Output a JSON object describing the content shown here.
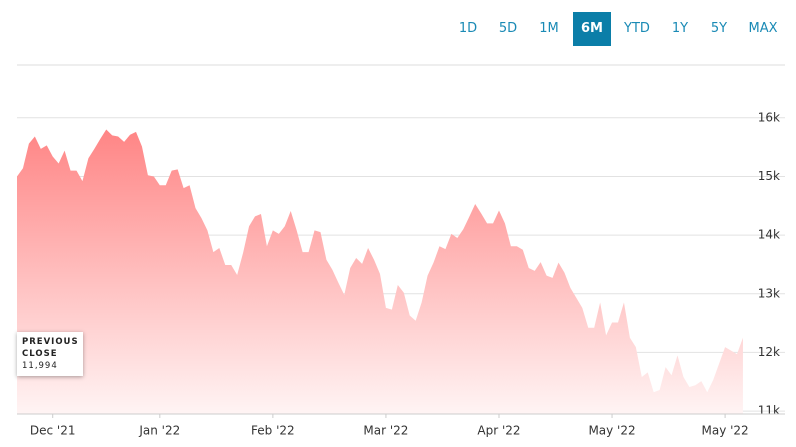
{
  "controls": {
    "ranges": [
      "1D",
      "5D",
      "1M",
      "6M",
      "YTD",
      "1Y",
      "5Y",
      "MAX"
    ],
    "selected": 3
  },
  "chart_data": {
    "type": "area",
    "values": [
      15000,
      15140,
      15560,
      15680,
      15470,
      15530,
      15340,
      15220,
      15440,
      15100,
      15100,
      14920,
      15310,
      15470,
      15640,
      15800,
      15700,
      15680,
      15590,
      15710,
      15760,
      15510,
      15020,
      15000,
      14850,
      14850,
      15100,
      15120,
      14800,
      14850,
      14460,
      14290,
      14080,
      13710,
      13780,
      13490,
      13490,
      13320,
      13700,
      14150,
      14320,
      14360,
      13810,
      14080,
      14020,
      14150,
      14410,
      14080,
      13710,
      13710,
      14080,
      14050,
      13580,
      13410,
      13190,
      12980,
      13440,
      13610,
      13510,
      13780,
      13580,
      13340,
      12760,
      12730,
      13150,
      13020,
      12630,
      12540,
      12850,
      13310,
      13530,
      13810,
      13760,
      14020,
      13950,
      14100,
      14310,
      14530,
      14370,
      14200,
      14200,
      14420,
      14200,
      13810,
      13810,
      13750,
      13440,
      13390,
      13540,
      13310,
      13270,
      13530,
      13360,
      13100,
      12930,
      12760,
      12420,
      12420,
      12850,
      12290,
      12510,
      12510,
      12850,
      12250,
      12090,
      11580,
      11660,
      11320,
      11360,
      11750,
      11610,
      11950,
      11580,
      11410,
      11440,
      11510,
      11320,
      11530,
      11810,
      12090,
      12030,
      11970,
      12250
    ],
    "color_top": "#ff8585",
    "color_bottom": "#fff4f4",
    "xlim": [
      0,
      121
    ],
    "xticks": [
      {
        "value": 6,
        "label": "Dec '21"
      },
      {
        "value": 24,
        "label": "Jan '22"
      },
      {
        "value": 43,
        "label": "Feb '22"
      },
      {
        "value": 62,
        "label": "Mar '22"
      },
      {
        "value": 81,
        "label": "Apr '22"
      },
      {
        "value": 100,
        "label": "May '22"
      },
      {
        "value": 119,
        "label": "May '22"
      }
    ],
    "ylim": [
      10950,
      16900
    ],
    "yticks": [
      {
        "value": 11000,
        "label": "11k"
      },
      {
        "value": 12000,
        "label": "12k"
      },
      {
        "value": 13000,
        "label": "13k"
      },
      {
        "value": 14000,
        "label": "14k"
      },
      {
        "value": 15000,
        "label": "15k"
      },
      {
        "value": 16000,
        "label": "16k"
      }
    ],
    "grid": true,
    "previous_close": {
      "label": "PREVIOUS CLOSE",
      "value": 11994,
      "value_label": "11,994"
    }
  }
}
